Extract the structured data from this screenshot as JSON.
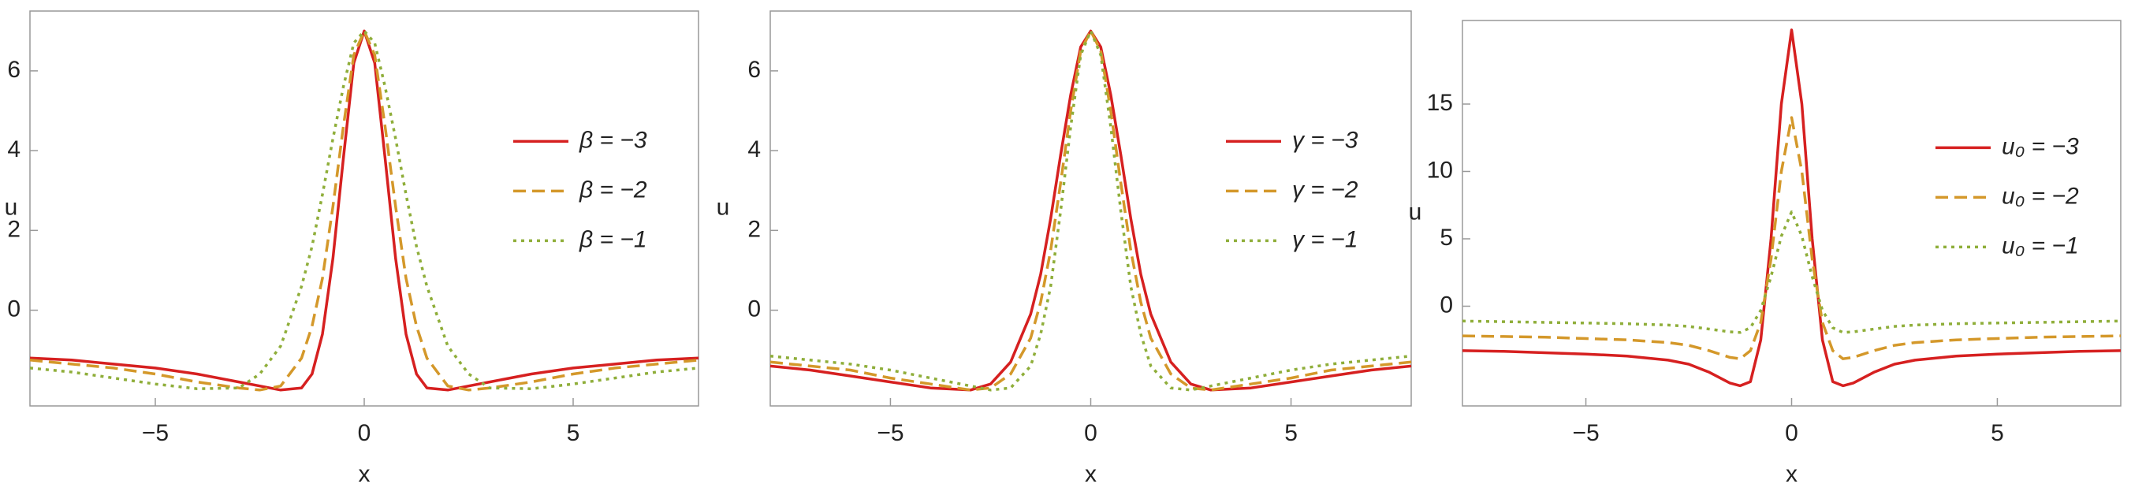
{
  "chart_data": [
    {
      "type": "line",
      "xlabel": "x",
      "ylabel": "u",
      "xlim": [
        -8,
        8
      ],
      "ylim": [
        -2.4,
        7.5
      ],
      "xticks": [
        {
          "value": -5,
          "label": "−5"
        },
        0,
        5
      ],
      "yticks": [
        0,
        2,
        4,
        6
      ],
      "legend": "right",
      "x": [
        -8,
        -7,
        -6,
        -5,
        -4,
        -3,
        -2.5,
        -2,
        -1.5,
        -1.25,
        -1,
        -0.75,
        -0.5,
        -0.25,
        0,
        0.25,
        0.5,
        0.75,
        1,
        1.25,
        1.5,
        2,
        2.5,
        3,
        4,
        5,
        6,
        7,
        8
      ],
      "series": [
        {
          "name": "β = −3",
          "color": "#d62020",
          "dash": "solid",
          "values": [
            -1.2,
            -1.25,
            -1.35,
            -1.45,
            -1.6,
            -1.8,
            -1.9,
            -2.0,
            -1.95,
            -1.6,
            -0.6,
            1.3,
            3.8,
            6.2,
            7.0,
            6.2,
            3.8,
            1.3,
            -0.6,
            -1.6,
            -1.95,
            -2.0,
            -1.9,
            -1.8,
            -1.6,
            -1.45,
            -1.35,
            -1.25,
            -1.2
          ]
        },
        {
          "name": "β = −2",
          "color": "#d4982a",
          "dash": "dashed",
          "values": [
            -1.25,
            -1.35,
            -1.45,
            -1.6,
            -1.8,
            -1.95,
            -2.0,
            -1.9,
            -1.2,
            -0.4,
            0.8,
            2.6,
            4.6,
            6.4,
            7.0,
            6.4,
            4.6,
            2.6,
            0.8,
            -0.4,
            -1.2,
            -1.9,
            -2.0,
            -1.95,
            -1.8,
            -1.6,
            -1.45,
            -1.35,
            -1.25
          ]
        },
        {
          "name": "β = −1",
          "color": "#8fae3a",
          "dash": "dotted",
          "values": [
            -1.45,
            -1.55,
            -1.7,
            -1.85,
            -1.97,
            -1.95,
            -1.6,
            -0.9,
            0.6,
            1.6,
            2.9,
            4.3,
            5.6,
            6.7,
            7.0,
            6.7,
            5.6,
            4.3,
            2.9,
            1.6,
            0.6,
            -0.9,
            -1.6,
            -1.95,
            -1.97,
            -1.85,
            -1.7,
            -1.55,
            -1.45
          ]
        }
      ]
    },
    {
      "type": "line",
      "xlabel": "x",
      "ylabel": "u",
      "xlim": [
        -8,
        8
      ],
      "ylim": [
        -2.4,
        7.5
      ],
      "xticks": [
        {
          "value": -5,
          "label": "−5"
        },
        0,
        5
      ],
      "yticks": [
        0,
        2,
        4,
        6
      ],
      "legend": "right",
      "x": [
        -8,
        -7,
        -6,
        -5,
        -4,
        -3,
        -2.5,
        -2,
        -1.5,
        -1.25,
        -1,
        -0.75,
        -0.5,
        -0.25,
        0,
        0.25,
        0.5,
        0.75,
        1,
        1.25,
        1.5,
        2,
        2.5,
        3,
        4,
        5,
        6,
        7,
        8
      ],
      "series": [
        {
          "name": "γ = −3",
          "color": "#d62020",
          "dash": "solid",
          "values": [
            -1.4,
            -1.5,
            -1.65,
            -1.8,
            -1.95,
            -2.0,
            -1.85,
            -1.3,
            -0.1,
            0.9,
            2.3,
            3.9,
            5.4,
            6.6,
            7.0,
            6.6,
            5.4,
            3.9,
            2.3,
            0.9,
            -0.1,
            -1.3,
            -1.85,
            -2.0,
            -1.95,
            -1.8,
            -1.65,
            -1.5,
            -1.4
          ]
        },
        {
          "name": "γ = −2",
          "color": "#d4982a",
          "dash": "dashed",
          "values": [
            -1.3,
            -1.4,
            -1.5,
            -1.7,
            -1.85,
            -2.0,
            -1.95,
            -1.6,
            -0.7,
            0.2,
            1.5,
            3.2,
            5.0,
            6.5,
            7.0,
            6.5,
            5.0,
            3.2,
            1.5,
            0.2,
            -0.7,
            -1.6,
            -1.95,
            -2.0,
            -1.85,
            -1.7,
            -1.5,
            -1.4,
            -1.3
          ]
        },
        {
          "name": "γ = −1",
          "color": "#8fae3a",
          "dash": "dotted",
          "values": [
            -1.15,
            -1.25,
            -1.35,
            -1.5,
            -1.7,
            -1.9,
            -2.0,
            -1.95,
            -1.4,
            -0.6,
            0.6,
            2.5,
            4.6,
            6.4,
            7.0,
            6.4,
            4.6,
            2.5,
            0.6,
            -0.6,
            -1.4,
            -1.95,
            -2.0,
            -1.9,
            -1.7,
            -1.5,
            -1.35,
            -1.25,
            -1.15
          ]
        }
      ]
    },
    {
      "type": "line",
      "xlabel": "x",
      "ylabel": "u",
      "xlim": [
        -8,
        8
      ],
      "ylim": [
        -7.4,
        21.2
      ],
      "xticks": [
        {
          "value": -5,
          "label": "−5"
        },
        0,
        5
      ],
      "yticks": [
        0,
        5,
        10,
        15
      ],
      "legend": "right",
      "x": [
        -8,
        -7,
        -6,
        -5,
        -4,
        -3,
        -2.5,
        -2,
        -1.5,
        -1.25,
        -1,
        -0.75,
        -0.5,
        -0.25,
        0,
        0.25,
        0.5,
        0.75,
        1,
        1.25,
        1.5,
        2,
        2.5,
        3,
        4,
        5,
        6,
        7,
        8
      ],
      "series": [
        {
          "name": "u₀ = −3",
          "color": "#d62020",
          "dash": "solid",
          "values": [
            -3.3,
            -3.35,
            -3.45,
            -3.55,
            -3.7,
            -4.0,
            -4.3,
            -4.9,
            -5.7,
            -5.9,
            -5.6,
            -2.5,
            5,
            15,
            20.5,
            15,
            5,
            -2.5,
            -5.6,
            -5.9,
            -5.7,
            -4.9,
            -4.3,
            -4.0,
            -3.7,
            -3.55,
            -3.45,
            -3.35,
            -3.3
          ]
        },
        {
          "name": "u₀ = −2",
          "color": "#d4982a",
          "dash": "dashed",
          "values": [
            -2.2,
            -2.25,
            -2.3,
            -2.4,
            -2.5,
            -2.7,
            -2.9,
            -3.3,
            -3.8,
            -3.9,
            -3.3,
            -1.2,
            3.5,
            10,
            14,
            10,
            3.5,
            -1.2,
            -3.3,
            -3.9,
            -3.8,
            -3.3,
            -2.9,
            -2.7,
            -2.5,
            -2.4,
            -2.3,
            -2.25,
            -2.2
          ]
        },
        {
          "name": "u₀ = −1",
          "color": "#8fae3a",
          "dash": "dotted",
          "values": [
            -1.1,
            -1.15,
            -1.2,
            -1.25,
            -1.3,
            -1.4,
            -1.5,
            -1.7,
            -1.9,
            -1.95,
            -1.6,
            -0.3,
            2.2,
            5.2,
            7,
            5.2,
            2.2,
            -0.3,
            -1.6,
            -1.95,
            -1.9,
            -1.7,
            -1.5,
            -1.4,
            -1.3,
            -1.25,
            -1.2,
            -1.15,
            -1.1
          ]
        }
      ]
    }
  ]
}
